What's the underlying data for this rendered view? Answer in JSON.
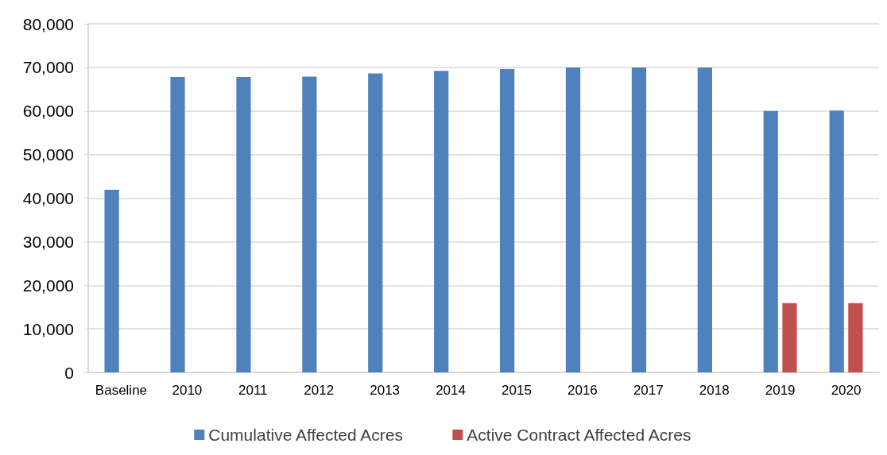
{
  "chart_data": {
    "type": "bar",
    "categories": [
      "Baseline",
      "2010",
      "2011",
      "2012",
      "2013",
      "2014",
      "2015",
      "2016",
      "2017",
      "2018",
      "2019",
      "2020"
    ],
    "series": [
      {
        "name": "Cumulative Affected Acres",
        "color": "#4f81bd",
        "values": [
          41900,
          67800,
          67800,
          67900,
          68600,
          69200,
          69600,
          70000,
          70000,
          70000,
          60000,
          60100
        ]
      },
      {
        "name": "Active Contract Affected Acres",
        "color": "#c0504d",
        "values": [
          null,
          null,
          null,
          null,
          null,
          null,
          null,
          null,
          null,
          null,
          15900,
          15900
        ]
      }
    ],
    "ylim": [
      0,
      80000
    ],
    "yticks": [
      0,
      {
        "value": 10000,
        "label": "10,000"
      },
      {
        "value": 20000,
        "label": "20,000"
      },
      {
        "value": 30000,
        "label": "30,000"
      },
      {
        "value": 40000,
        "label": "40,000"
      },
      {
        "value": 50000,
        "label": "50,000"
      },
      {
        "value": 60000,
        "label": "60,000"
      },
      {
        "value": 70000,
        "label": "70,000"
      },
      {
        "value": 80000,
        "label": "80,000"
      }
    ],
    "grid": "y",
    "legend": "bottom"
  }
}
